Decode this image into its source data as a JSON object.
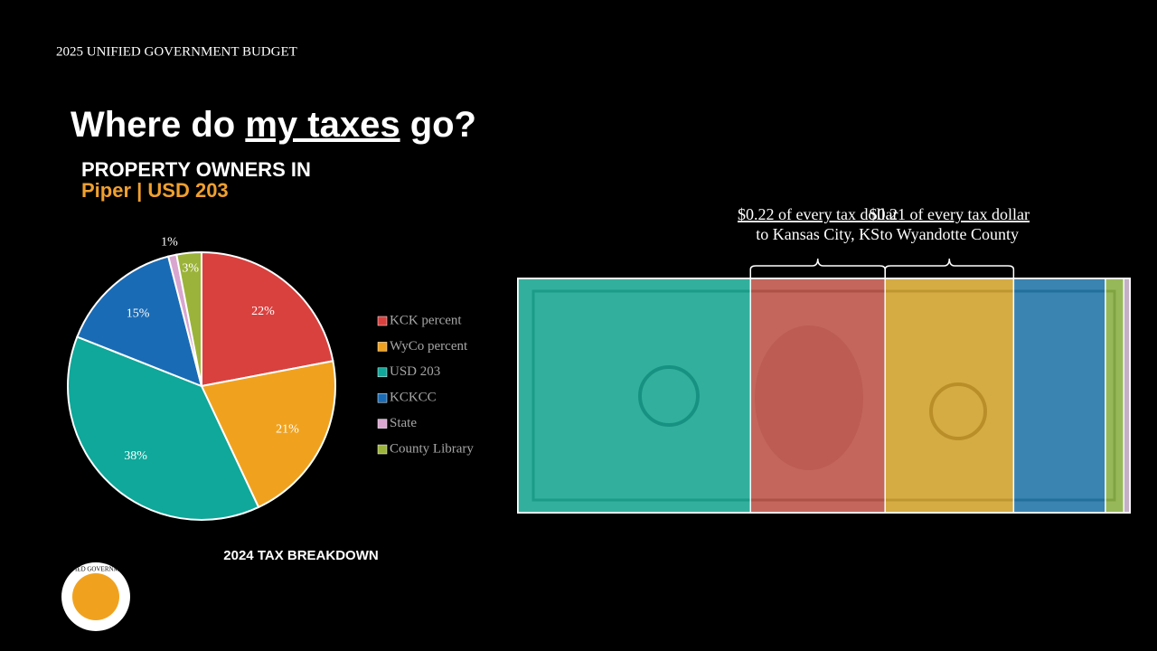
{
  "header": "2025 UNIFIED GOVERNMENT BUDGET",
  "title": {
    "before": "Where do ",
    "underlined": "my taxes",
    "after": " go?"
  },
  "subtitle": {
    "line1": "PROPERTY OWNERS IN",
    "line2": "Piper | USD 203"
  },
  "logo_text": "UNIFIED GOVERNMENT",
  "annotations": [
    {
      "line1": "$0.22 of every tax dollar",
      "line2": "to Kansas City, KS"
    },
    {
      "line1": "$0.21 of every tax dollar",
      "line2": "to Wyandotte County"
    }
  ],
  "chart_data": {
    "type": "pie",
    "caption": "2024 TAX BREAKDOWN",
    "categories": [
      "KCK percent",
      "WyCo percent",
      "USD 203",
      "KCKCC",
      "State",
      "County Library"
    ],
    "values": [
      22,
      21,
      38,
      15,
      1,
      3
    ],
    "value_labels": [
      "22%",
      "21%",
      "38%",
      "15%",
      "1%",
      "3%"
    ],
    "colors": [
      "#d9413f",
      "#f0a21f",
      "#0fa89a",
      "#1a6bb5",
      "#d9a6d0",
      "#9bb33a"
    ]
  }
}
